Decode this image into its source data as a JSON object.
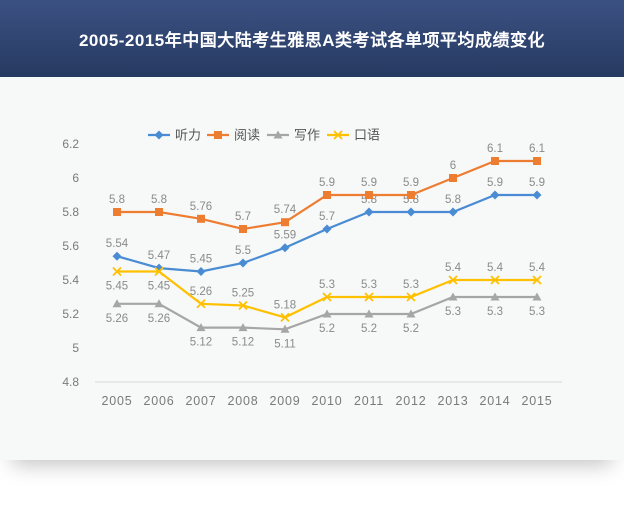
{
  "header": {
    "title": "2005-2015年中国大陆考生雅思A类考试各单项平均成绩变化"
  },
  "chart_data": {
    "type": "line",
    "title": "2005-2015年中国大陆考生雅思A类考试各单项平均成绩变化",
    "x": [
      "2005",
      "2006",
      "2007",
      "2008",
      "2009",
      "2010",
      "2011",
      "2012",
      "2013",
      "2014",
      "2015"
    ],
    "series": [
      {
        "id": "listening",
        "name": "听力",
        "color": "#4a8cd3",
        "marker": "diamond",
        "label_side": "above",
        "values": [
          5.54,
          5.47,
          5.45,
          5.5,
          5.59,
          5.7,
          5.8,
          5.8,
          5.8,
          5.9,
          5.9
        ]
      },
      {
        "id": "reading",
        "name": "阅读",
        "color": "#ed7d31",
        "marker": "square",
        "label_side": "above",
        "values": [
          5.8,
          5.8,
          5.76,
          5.7,
          5.74,
          5.9,
          5.9,
          5.9,
          6,
          6.1,
          6.1
        ]
      },
      {
        "id": "writing",
        "name": "写作",
        "color": "#a6a6a6",
        "marker": "triangle",
        "label_side": "below",
        "values": [
          5.26,
          5.26,
          5.12,
          5.12,
          5.11,
          5.2,
          5.2,
          5.2,
          5.3,
          5.3,
          5.3
        ]
      },
      {
        "id": "speaking",
        "name": "口语",
        "color": "#ffc000",
        "marker": "x",
        "label_side": [
          "below",
          "below",
          "above",
          "above",
          "above",
          "above",
          "above",
          "above",
          "above",
          "above",
          "above"
        ],
        "values": [
          5.45,
          5.45,
          5.26,
          5.25,
          5.18,
          5.3,
          5.3,
          5.3,
          5.4,
          5.4,
          5.4
        ]
      }
    ],
    "ylim": [
      4.8,
      6.2
    ],
    "ytick_step": 0.2,
    "yticks": [
      "4.8",
      "5",
      "5.2",
      "5.4",
      "5.6",
      "5.8",
      "6",
      "6.2"
    ],
    "grid": false,
    "legend_position": "top",
    "data_labels": true
  },
  "colors": {
    "header_gradient_top": "#3b5182",
    "header_gradient_bottom": "#263a61",
    "card_bg": "#f7f8f8",
    "axis_line": "#d9d9d9",
    "axis_text": "#7a7a7a",
    "label_text": "#8a8a8a",
    "legend_text": "#555555"
  }
}
